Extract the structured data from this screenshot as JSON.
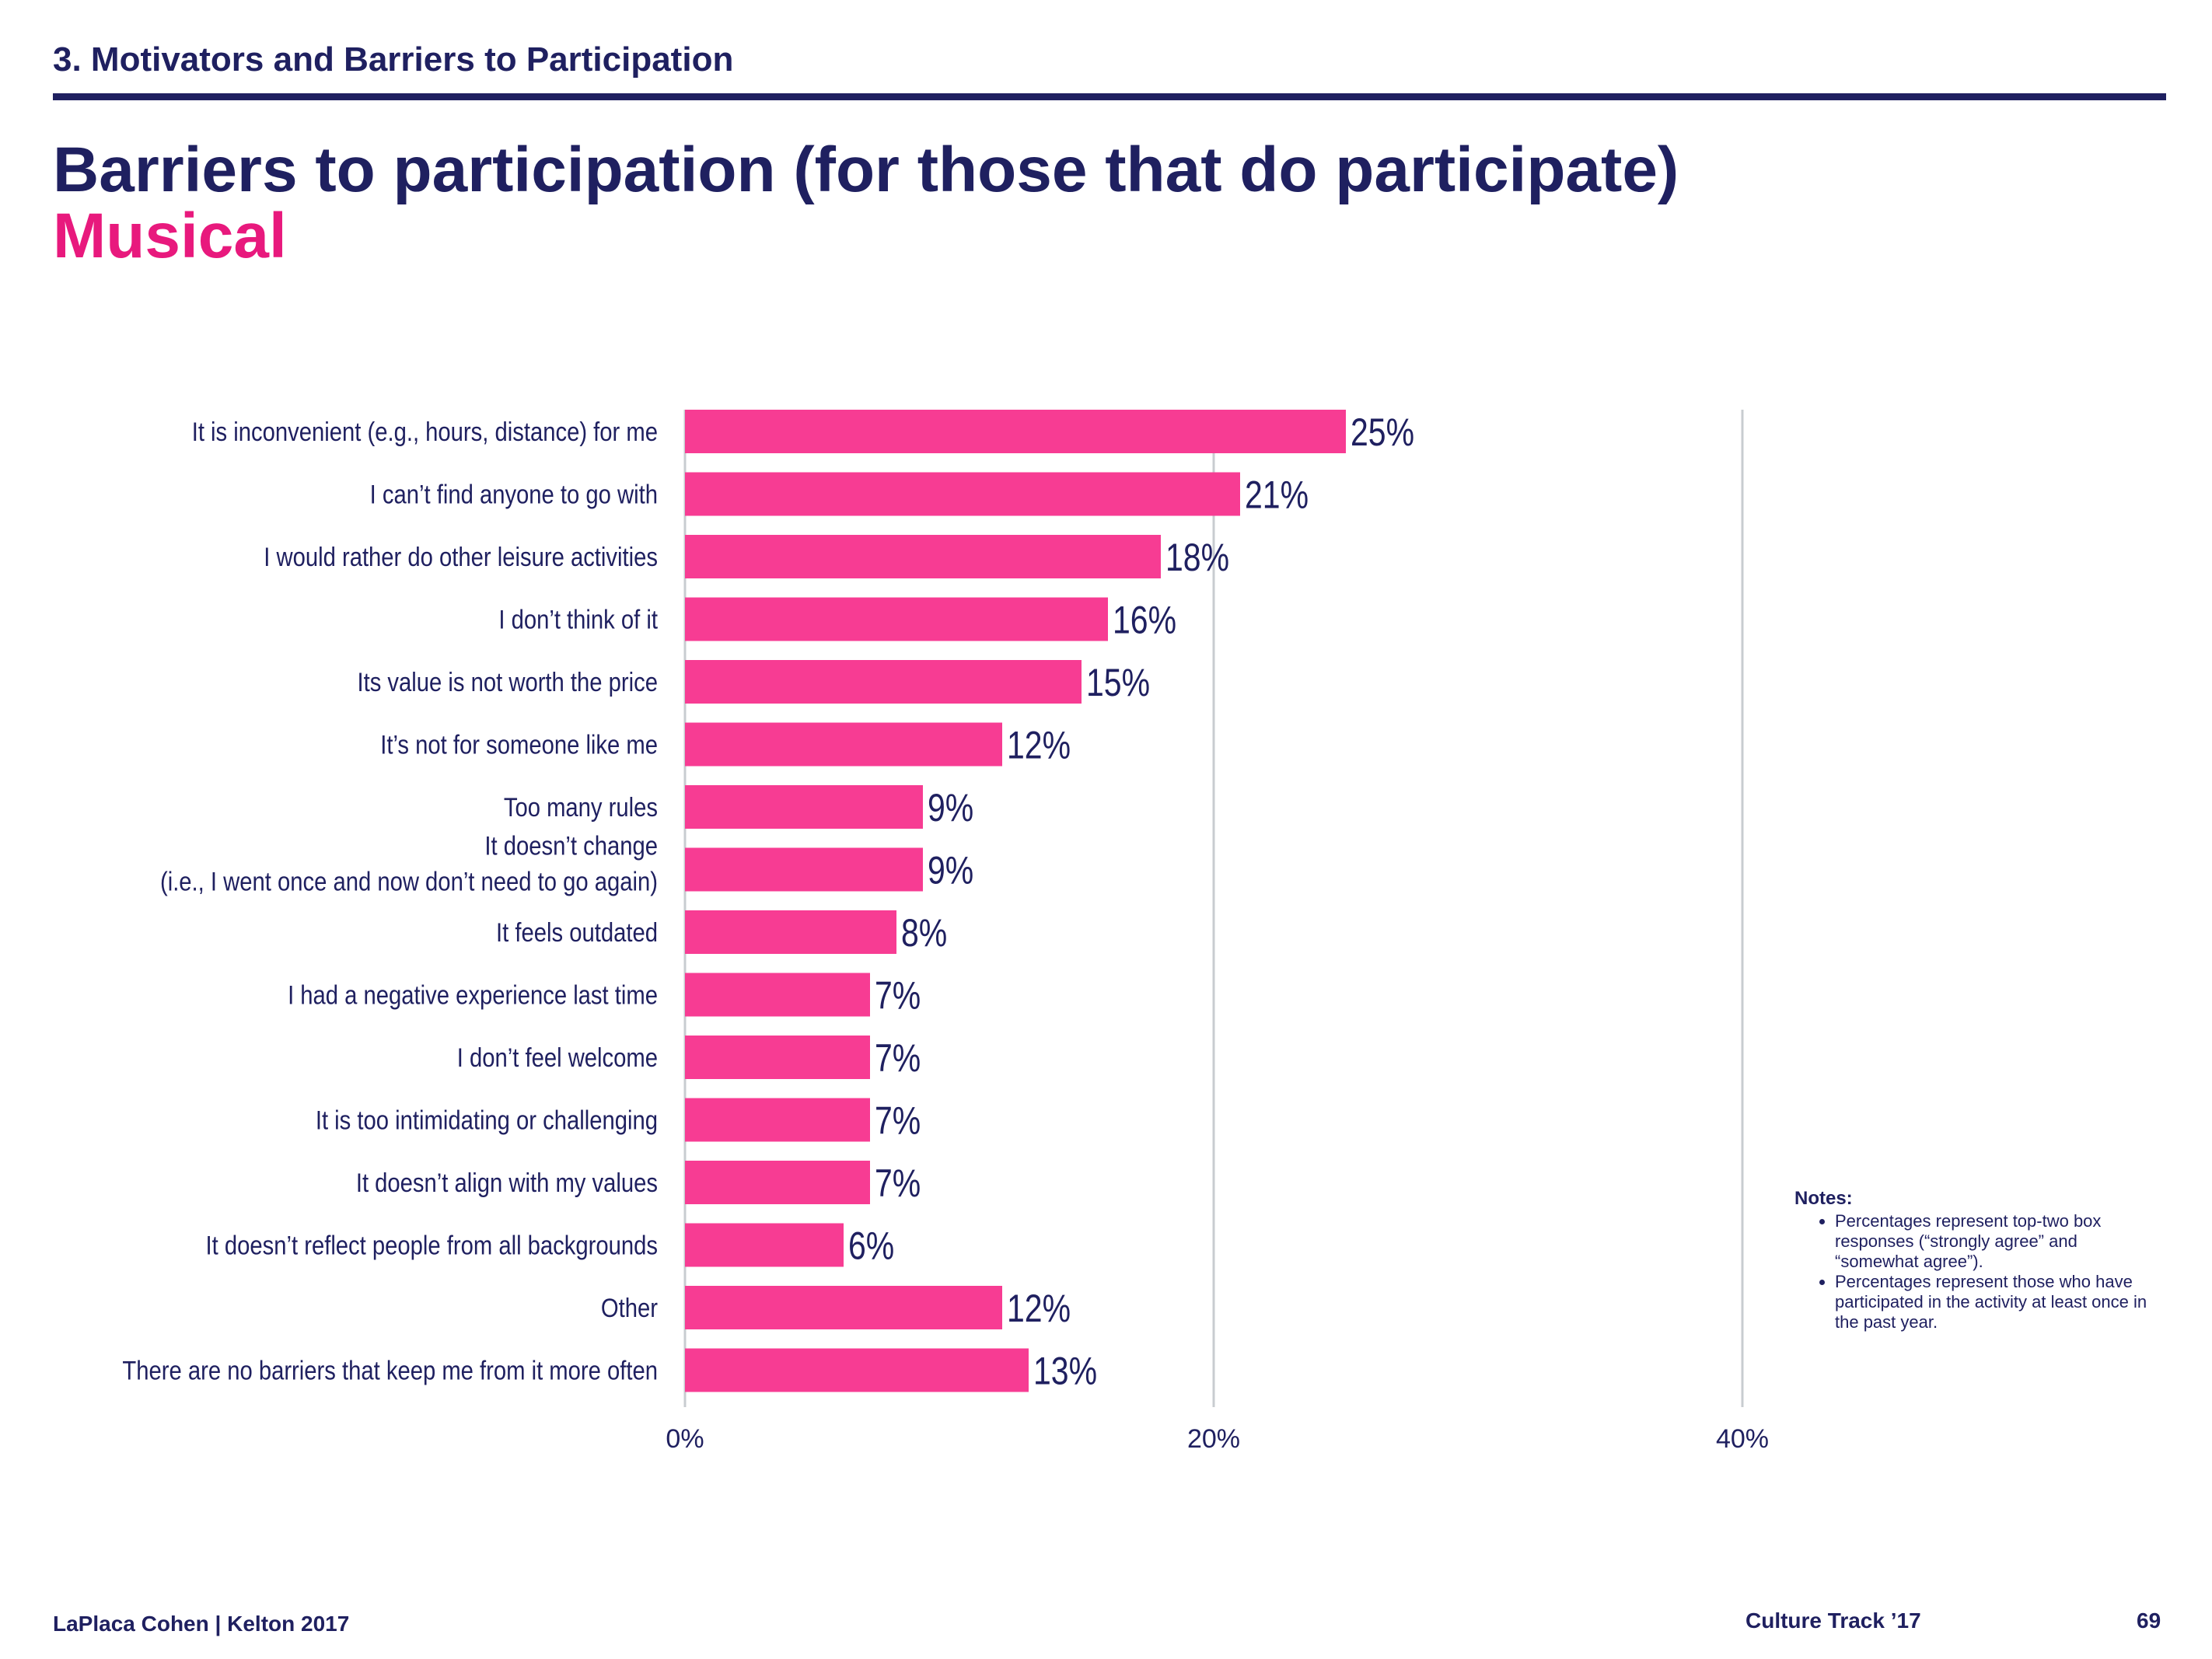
{
  "header": {
    "section": "3. Motivators and Barriers to Participation",
    "title": "Barriers to participation (for those that do participate)",
    "subtitle": "Musical"
  },
  "colors": {
    "navy": "#1f2060",
    "bar": "#f73c93",
    "accent": "#e8197d",
    "grid": "#c8ccd0"
  },
  "chart_data": {
    "type": "bar",
    "orientation": "horizontal",
    "categories": [
      [
        "It is inconvenient (e.g., hours, distance) for me"
      ],
      [
        "I can’t find anyone to go with"
      ],
      [
        "I would rather do other leisure activities"
      ],
      [
        "I don’t think of it"
      ],
      [
        "Its value is not worth the price"
      ],
      [
        "It’s not for someone like me"
      ],
      [
        "Too many rules"
      ],
      [
        "It doesn’t change",
        "(i.e., I went once and now don’t need to go again)"
      ],
      [
        "It feels outdated"
      ],
      [
        "I had a negative experience last time"
      ],
      [
        "I don’t feel welcome"
      ],
      [
        "It is too intimidating or challenging"
      ],
      [
        "It doesn’t align with my values"
      ],
      [
        "It doesn’t reflect people from all backgrounds"
      ],
      [
        "Other"
      ],
      [
        "There are no barriers that keep me from it more often"
      ]
    ],
    "values": [
      25,
      21,
      18,
      16,
      15,
      12,
      9,
      9,
      8,
      7,
      7,
      7,
      7,
      6,
      12,
      13
    ],
    "value_labels": [
      "25%",
      "21%",
      "18%",
      "16%",
      "15%",
      "12%",
      "9%",
      "9%",
      "8%",
      "7%",
      "7%",
      "7%",
      "7%",
      "6%",
      "12%",
      "13%"
    ],
    "xlim": [
      0,
      40
    ],
    "xticks": [
      0,
      20,
      40
    ],
    "xtick_labels": [
      "0%",
      "20%",
      "40%"
    ],
    "grid": true
  },
  "notes": {
    "heading": "Notes:",
    "items": [
      "Percentages represent top-two box responses (“strongly agree” and “somewhat agree”).",
      "Percentages represent those who have participated in the activity at least once in the past year."
    ]
  },
  "footer": {
    "left": "LaPlaca Cohen | Kelton 2017",
    "center": "Culture Track ’17",
    "page": "69"
  }
}
